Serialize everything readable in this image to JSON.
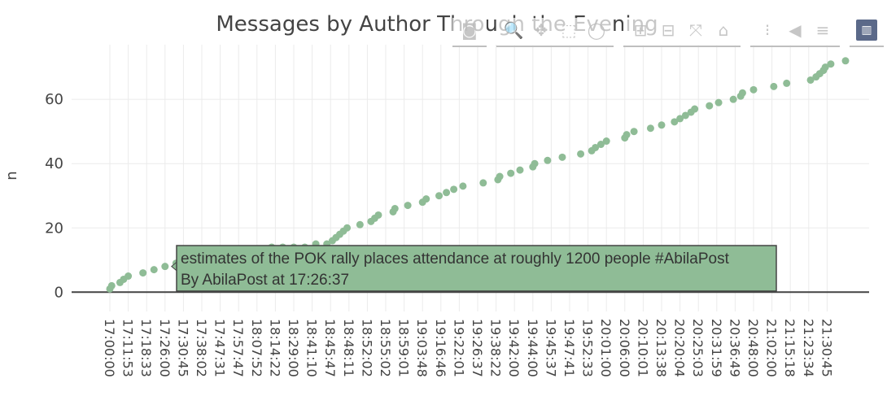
{
  "colors": {
    "marker": "#8fbc96",
    "tooltip_bg": "#8fbc96",
    "tooltip_border": "#444444",
    "text": "#444444",
    "grid": "#ebebeb"
  },
  "chart_data": {
    "type": "scatter",
    "title": "Messages by Author Through the Evening",
    "xlabel": "",
    "ylabel": "n",
    "ylim": [
      -6,
      77
    ],
    "yticks": [
      0,
      20,
      40,
      60
    ],
    "grid": true,
    "x_tick_labels": [
      "17:00:00",
      "17:11:53",
      "17:18:33",
      "17:26:00",
      "17:30:45",
      "17:38:02",
      "17:47:31",
      "17:57:47",
      "18:07:52",
      "18:14:22",
      "18:29:00",
      "18:41:10",
      "18:45:47",
      "18:48:11",
      "18:52:02",
      "18:55:02",
      "18:59:01",
      "19:03:48",
      "19:16:46",
      "19:22:01",
      "19:26:37",
      "19:38:22",
      "19:42:00",
      "19:44:00",
      "19:45:37",
      "19:47:41",
      "19:52:33",
      "20:01:00",
      "20:06:00",
      "20:10:01",
      "20:13:38",
      "20:20:04",
      "20:25:03",
      "20:31:59",
      "20:36:49",
      "20:48:00",
      "21:02:00",
      "21:15:18",
      "21:23:34",
      "21:30:45"
    ],
    "points": [
      {
        "x": 0.0,
        "y": 1
      },
      {
        "x": 0.1,
        "y": 2
      },
      {
        "x": 0.55,
        "y": 3
      },
      {
        "x": 0.75,
        "y": 4
      },
      {
        "x": 1.0,
        "y": 5
      },
      {
        "x": 1.8,
        "y": 6
      },
      {
        "x": 2.4,
        "y": 7
      },
      {
        "x": 3.0,
        "y": 8
      },
      {
        "x": 3.6,
        "y": 9
      },
      {
        "x": 4.1,
        "y": 10
      },
      {
        "x": 4.6,
        "y": 11
      },
      {
        "x": 5.2,
        "y": 11
      },
      {
        "x": 5.8,
        "y": 12
      },
      {
        "x": 6.4,
        "y": 12
      },
      {
        "x": 7.0,
        "y": 13
      },
      {
        "x": 7.6,
        "y": 13
      },
      {
        "x": 8.2,
        "y": 13
      },
      {
        "x": 8.8,
        "y": 14
      },
      {
        "x": 9.4,
        "y": 14
      },
      {
        "x": 10.0,
        "y": 14
      },
      {
        "x": 10.6,
        "y": 14
      },
      {
        "x": 11.2,
        "y": 15
      },
      {
        "x": 11.8,
        "y": 15
      },
      {
        "x": 12.1,
        "y": 16
      },
      {
        "x": 12.3,
        "y": 17
      },
      {
        "x": 12.5,
        "y": 18
      },
      {
        "x": 12.7,
        "y": 19
      },
      {
        "x": 12.9,
        "y": 20
      },
      {
        "x": 13.6,
        "y": 21
      },
      {
        "x": 14.2,
        "y": 22
      },
      {
        "x": 14.4,
        "y": 23
      },
      {
        "x": 14.6,
        "y": 24
      },
      {
        "x": 15.4,
        "y": 25
      },
      {
        "x": 15.5,
        "y": 26
      },
      {
        "x": 16.2,
        "y": 27
      },
      {
        "x": 17.0,
        "y": 28
      },
      {
        "x": 17.2,
        "y": 29
      },
      {
        "x": 17.9,
        "y": 30
      },
      {
        "x": 18.3,
        "y": 31
      },
      {
        "x": 18.7,
        "y": 32
      },
      {
        "x": 19.2,
        "y": 33
      },
      {
        "x": 20.3,
        "y": 34
      },
      {
        "x": 21.1,
        "y": 35
      },
      {
        "x": 21.2,
        "y": 36
      },
      {
        "x": 21.8,
        "y": 37
      },
      {
        "x": 22.3,
        "y": 38
      },
      {
        "x": 23.0,
        "y": 39
      },
      {
        "x": 23.1,
        "y": 40
      },
      {
        "x": 23.8,
        "y": 41
      },
      {
        "x": 24.6,
        "y": 42
      },
      {
        "x": 25.6,
        "y": 43
      },
      {
        "x": 26.2,
        "y": 44
      },
      {
        "x": 26.4,
        "y": 45
      },
      {
        "x": 26.7,
        "y": 46
      },
      {
        "x": 27.0,
        "y": 47
      },
      {
        "x": 28.0,
        "y": 48
      },
      {
        "x": 28.1,
        "y": 49
      },
      {
        "x": 28.5,
        "y": 50
      },
      {
        "x": 29.4,
        "y": 51
      },
      {
        "x": 30.0,
        "y": 52
      },
      {
        "x": 30.7,
        "y": 53
      },
      {
        "x": 31.0,
        "y": 54
      },
      {
        "x": 31.3,
        "y": 55
      },
      {
        "x": 31.6,
        "y": 56
      },
      {
        "x": 31.8,
        "y": 57
      },
      {
        "x": 32.6,
        "y": 58
      },
      {
        "x": 33.1,
        "y": 59
      },
      {
        "x": 33.9,
        "y": 60
      },
      {
        "x": 34.3,
        "y": 61
      },
      {
        "x": 34.4,
        "y": 62
      },
      {
        "x": 35.0,
        "y": 63
      },
      {
        "x": 36.1,
        "y": 64
      },
      {
        "x": 36.8,
        "y": 65
      },
      {
        "x": 38.1,
        "y": 66
      },
      {
        "x": 38.4,
        "y": 67
      },
      {
        "x": 38.6,
        "y": 68
      },
      {
        "x": 38.8,
        "y": 69
      },
      {
        "x": 38.9,
        "y": 70
      },
      {
        "x": 39.2,
        "y": 71
      },
      {
        "x": 40.0,
        "y": 72
      }
    ],
    "hover": {
      "line1": "estimates of the POK rally places attendance at roughly 1200 people #AbilaPost",
      "line2": "By  AbilaPost  at  17:26:37",
      "point": {
        "x": 3.0,
        "y": 8
      }
    }
  },
  "modebar": {
    "buttons": [
      {
        "icon": "camera-icon",
        "glyph": "◙",
        "group": 0
      },
      {
        "icon": "zoom-icon",
        "glyph": "🔍",
        "group": 1,
        "active": true
      },
      {
        "icon": "pan-icon",
        "glyph": "✥",
        "group": 1
      },
      {
        "icon": "box-select-icon",
        "glyph": "⬚",
        "group": 1
      },
      {
        "icon": "lasso-select-icon",
        "glyph": "◯",
        "group": 1
      },
      {
        "icon": "zoom-in-icon",
        "glyph": "⊞",
        "group": 2
      },
      {
        "icon": "zoom-out-icon",
        "glyph": "⊟",
        "group": 2
      },
      {
        "icon": "autoscale-icon",
        "glyph": "⤧",
        "group": 2
      },
      {
        "icon": "home-icon",
        "glyph": "⌂",
        "group": 2
      },
      {
        "icon": "spike-lines-icon",
        "glyph": "⁝",
        "group": 3
      },
      {
        "icon": "hover-closest-icon",
        "glyph": "◀",
        "group": 3
      },
      {
        "icon": "hover-compare-icon",
        "glyph": "≡",
        "group": 3
      },
      {
        "icon": "plotly-logo-icon",
        "glyph": "▥",
        "group": 4
      }
    ]
  }
}
